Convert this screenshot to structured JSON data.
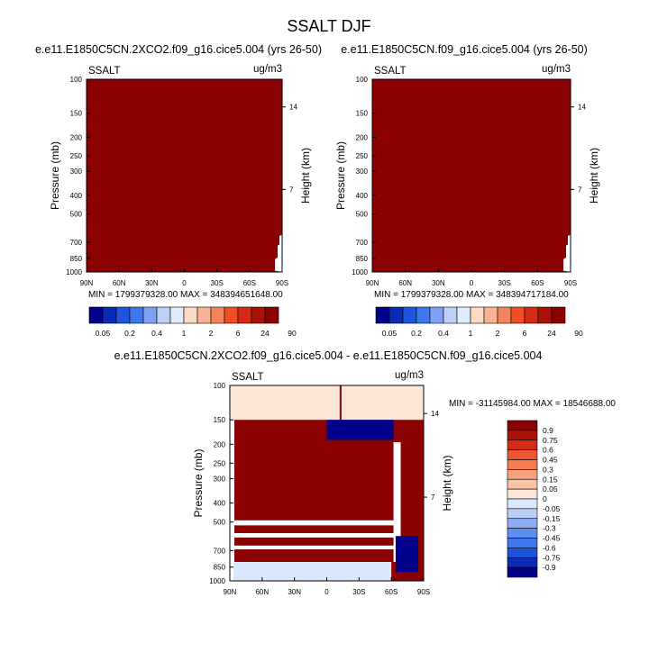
{
  "figure": {
    "title": "SSALT DJF"
  },
  "colors": {
    "seq_palette": [
      "#00008b",
      "#0a2bb5",
      "#1e55dc",
      "#3d78ef",
      "#7ea1f4",
      "#bcd0f7",
      "#e0ecfb",
      "#fcdac3",
      "#f8b394",
      "#f5835c",
      "#f04e27",
      "#d52a14",
      "#aa1307",
      "#8b0000"
    ],
    "div_palette": [
      "#00008b",
      "#0a2bb5",
      "#1e55dc",
      "#3d78ef",
      "#5f8df2",
      "#8eadf5",
      "#bcd0f7",
      "#d9e8fb",
      "#fde7d9",
      "#f9c4a5",
      "#f6a27e",
      "#f37b52",
      "#ee5530",
      "#d52a14",
      "#aa1307",
      "#8b0000"
    ]
  },
  "chart_data": [
    {
      "type": "heatmap",
      "title": "e.e11.E1850C5CN.2XCO2.f09_g16.cice5.004 (yrs 26-50)",
      "left_label": "SSALT",
      "right_label": "ug/m3",
      "xlabel": "",
      "ylabel": "Pressure (mb)",
      "y2label": "Height (km)",
      "x_ticks": [
        "90N",
        "60N",
        "30N",
        "0",
        "30S",
        "60S",
        "90S"
      ],
      "y_ticks": [
        "100",
        "150",
        "200",
        "250",
        "300",
        "400",
        "500",
        "700",
        "850",
        "1000"
      ],
      "y2_ticks": [
        "14",
        "7"
      ],
      "ylim": [
        1000,
        100
      ],
      "y_scale": "log",
      "stats": "MIN = 1799379328.00   MAX = 348394651648.00",
      "colorbar_labels": [
        "0.05",
        "0.2",
        "0.4",
        "1",
        "2",
        "6",
        "24",
        "90"
      ],
      "colorbar_levels": [
        0.05,
        0.1,
        0.2,
        0.3,
        0.4,
        0.6,
        1,
        1.5,
        2,
        3,
        6,
        12,
        24,
        48,
        90
      ],
      "field": "nearly all values above the top level (90); lowest values near 60S-90S below 700 mb"
    },
    {
      "type": "heatmap",
      "title": "e.e11.E1850C5CN.f09_g16.cice5.004 (yrs 26-50)",
      "left_label": "SSALT",
      "right_label": "ug/m3",
      "xlabel": "",
      "ylabel": "Pressure (mb)",
      "y2label": "Height (km)",
      "x_ticks": [
        "90N",
        "60N",
        "30N",
        "0",
        "30S",
        "60S",
        "90S"
      ],
      "y_ticks": [
        "100",
        "150",
        "200",
        "250",
        "300",
        "400",
        "500",
        "700",
        "850",
        "1000"
      ],
      "y2_ticks": [
        "14",
        "7"
      ],
      "ylim": [
        1000,
        100
      ],
      "y_scale": "log",
      "stats": "MIN = 1799379328.00   MAX = 348394717184.00",
      "colorbar_labels": [
        "0.05",
        "0.2",
        "0.4",
        "1",
        "2",
        "6",
        "24",
        "90"
      ],
      "colorbar_levels": [
        0.05,
        0.1,
        0.2,
        0.3,
        0.4,
        0.6,
        1,
        1.5,
        2,
        3,
        6,
        12,
        24,
        48,
        90
      ],
      "field": "nearly all values above the top level (90); lowest values near 60S-90S below 700 mb"
    },
    {
      "type": "heatmap",
      "title": "e.e11.E1850C5CN.2XCO2.f09_g16.cice5.004 - e.e11.E1850C5CN.f09_g16.cice5.004",
      "left_label": "SSALT",
      "right_label": "ug/m3",
      "xlabel": "",
      "ylabel": "Pressure (mb)",
      "y2label": "Height (km)",
      "x_ticks": [
        "90N",
        "60N",
        "30N",
        "0",
        "30S",
        "60S",
        "90S"
      ],
      "y_ticks": [
        "100",
        "150",
        "200",
        "250",
        "300",
        "400",
        "500",
        "700",
        "850",
        "1000"
      ],
      "y2_ticks": [
        "14",
        "7"
      ],
      "ylim": [
        1000,
        100
      ],
      "y_scale": "log",
      "stats": "MIN = -31145984.00   MAX = 18546688.00",
      "colorbar_labels": [
        "0.9",
        "0.75",
        "0.6",
        "0.45",
        "0.3",
        "0.15",
        "0.05",
        "0",
        "-0.05",
        "-0.15",
        "-0.3",
        "-0.45",
        "-0.6",
        "-0.75",
        "-0.9"
      ],
      "field": "0 to 0.05 band from 100 to 150 mb; large positive values (>0.9) over most of 150-1000 mb; large negative values (<-0.9) around 0-60S near 150-190 mb and near 60S-90S at 600-900 mb; near-zero gaps in layers near 500, 580, 680 mb and below 800 mb"
    }
  ]
}
